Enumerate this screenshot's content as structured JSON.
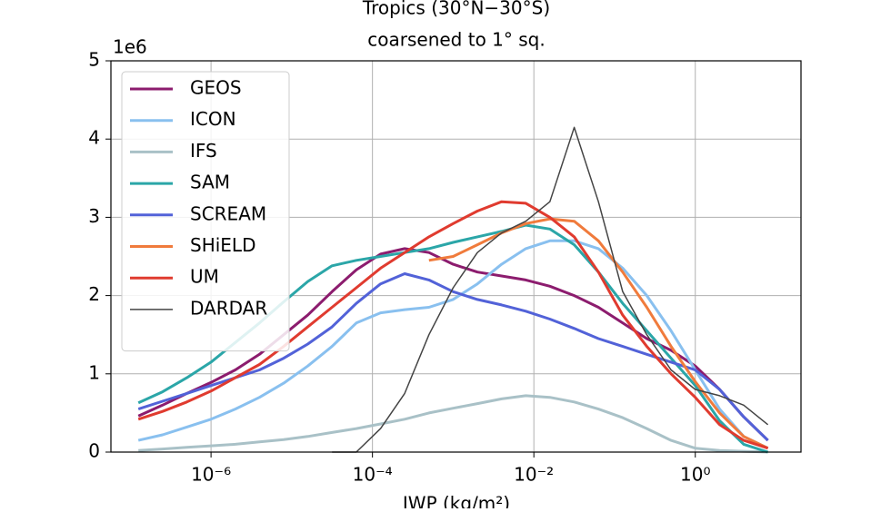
{
  "chart_data": {
    "type": "line",
    "title": "Tropics (30°N−30°S)",
    "subtitle": "coarsened to 1° sq.",
    "x_label": "IWP (kg/m²)",
    "y_offset_label": "1e6",
    "x_scale": "log",
    "grid": true,
    "legend": "upper left",
    "xlim": [
      5.75e-08,
      20.4
    ],
    "xticks": [
      {
        "value": 1e-06,
        "label": "10⁻⁶"
      },
      {
        "value": 0.0001,
        "label": "10⁻⁴"
      },
      {
        "value": 0.01,
        "label": "10⁻²"
      },
      {
        "value": 1,
        "label": "10⁰"
      }
    ],
    "ylim": [
      0,
      5
    ],
    "yticks": [
      0,
      1,
      2,
      3,
      4,
      5
    ],
    "x": [
      1.26e-07,
      2.51e-07,
      5.01e-07,
      1e-06,
      2e-06,
      3.98e-06,
      7.94e-06,
      1.58e-05,
      3.16e-05,
      6.31e-05,
      0.000126,
      0.000251,
      0.000501,
      0.001,
      0.002,
      0.00398,
      0.00794,
      0.0158,
      0.0316,
      0.0631,
      0.126,
      0.251,
      0.501,
      1,
      2,
      3.98,
      7.94
    ],
    "series": [
      {
        "name": "GEOS",
        "color": "#8c1c6e",
        "values": [
          0.46,
          0.6,
          0.75,
          0.89,
          1.05,
          1.25,
          1.5,
          1.75,
          2.05,
          2.33,
          2.53,
          2.6,
          2.55,
          2.4,
          2.3,
          2.25,
          2.2,
          2.12,
          2.0,
          1.85,
          1.65,
          1.45,
          1.3,
          1.1,
          0.8,
          0.45,
          0.15
        ]
      },
      {
        "name": "ICON",
        "color": "#89c0ef",
        "values": [
          0.15,
          0.22,
          0.32,
          0.42,
          0.55,
          0.7,
          0.88,
          1.1,
          1.35,
          1.65,
          1.78,
          1.82,
          1.85,
          1.95,
          2.15,
          2.4,
          2.6,
          2.7,
          2.7,
          2.6,
          2.35,
          2.0,
          1.55,
          1.05,
          0.55,
          0.2,
          0.05
        ]
      },
      {
        "name": "IFS",
        "color": "#a9c1c7",
        "values": [
          0.02,
          0.04,
          0.06,
          0.08,
          0.1,
          0.13,
          0.16,
          0.2,
          0.25,
          0.3,
          0.36,
          0.42,
          0.5,
          0.56,
          0.62,
          0.68,
          0.72,
          0.7,
          0.64,
          0.55,
          0.44,
          0.3,
          0.15,
          0.05,
          0.02,
          0.01,
          0.0
        ]
      },
      {
        "name": "SAM",
        "color": "#2ba6a8",
        "values": [
          0.63,
          0.77,
          0.95,
          1.15,
          1.4,
          1.65,
          1.92,
          2.18,
          2.38,
          2.45,
          2.5,
          2.55,
          2.6,
          2.68,
          2.75,
          2.82,
          2.9,
          2.85,
          2.65,
          2.3,
          1.9,
          1.55,
          1.2,
          0.85,
          0.4,
          0.1,
          0.0
        ]
      },
      {
        "name": "SCREAM",
        "color": "#5262d8",
        "values": [
          0.55,
          0.65,
          0.75,
          0.85,
          0.95,
          1.05,
          1.2,
          1.38,
          1.6,
          1.9,
          2.15,
          2.28,
          2.2,
          2.05,
          1.95,
          1.88,
          1.8,
          1.7,
          1.58,
          1.45,
          1.35,
          1.25,
          1.15,
          1.05,
          0.8,
          0.45,
          0.15
        ]
      },
      {
        "name": "SHiELD",
        "color": "#f07b3c",
        "values": [
          null,
          null,
          null,
          null,
          null,
          null,
          null,
          null,
          null,
          null,
          null,
          null,
          2.45,
          2.5,
          2.65,
          2.8,
          2.92,
          2.98,
          2.95,
          2.7,
          2.3,
          1.85,
          1.35,
          0.9,
          0.5,
          0.2,
          0.05
        ]
      },
      {
        "name": "UM",
        "color": "#e03b2f",
        "values": [
          0.42,
          0.52,
          0.64,
          0.78,
          0.95,
          1.12,
          1.35,
          1.6,
          1.85,
          2.1,
          2.35,
          2.55,
          2.75,
          2.92,
          3.08,
          3.2,
          3.18,
          3.0,
          2.75,
          2.3,
          1.75,
          1.35,
          1.0,
          0.7,
          0.35,
          0.15,
          0.05
        ]
      },
      {
        "name": "DARDAR",
        "color": "#444444",
        "thin": true,
        "values": [
          null,
          null,
          null,
          null,
          null,
          null,
          null,
          null,
          0.0,
          0.0,
          0.3,
          0.75,
          1.5,
          2.1,
          2.55,
          2.8,
          2.95,
          3.2,
          4.15,
          3.2,
          2.05,
          1.5,
          1.05,
          0.8,
          0.72,
          0.6,
          0.35
        ]
      }
    ]
  }
}
